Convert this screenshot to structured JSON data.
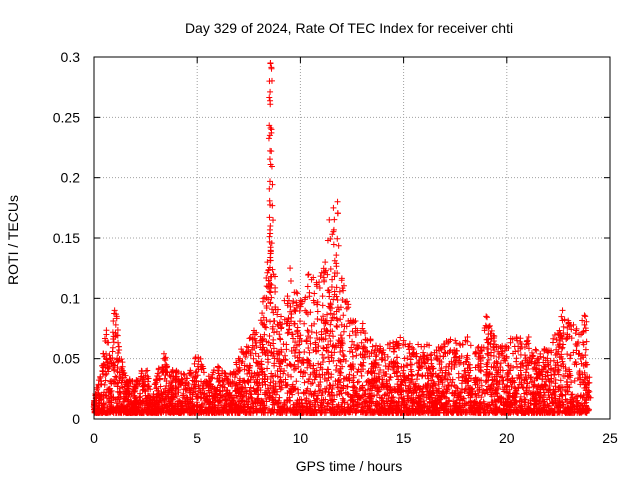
{
  "chart_data": {
    "type": "scatter",
    "title": "Day 329 of 2024, Rate Of TEC Index for receiver chti",
    "xlabel": "GPS time / hours",
    "ylabel": "ROTI / TECUs",
    "xlim": [
      0,
      25
    ],
    "ylim": [
      0,
      0.3
    ],
    "grid": true,
    "x_ticks": [
      0,
      5,
      10,
      15,
      20,
      25
    ],
    "x_tick_labels": [
      "0",
      "5",
      "10",
      "15",
      "20",
      "25"
    ],
    "y_ticks": [
      0,
      0.05,
      0.1,
      0.15,
      0.2,
      0.25,
      0.3
    ],
    "y_tick_labels": [
      "0",
      "0.05",
      "0.1",
      "0.15",
      "0.2",
      "0.25",
      "0.3"
    ],
    "marker": "+",
    "marker_color": "#ff0000",
    "series": [
      {
        "name": "ROTI",
        "note": "dense overplotted point cloud; representative peaks listed",
        "x": [
          0.0,
          0.1,
          0.3,
          0.6,
          0.8,
          1.0,
          1.1,
          1.2,
          1.4,
          1.6,
          2.0,
          2.3,
          2.6,
          3.0,
          3.4,
          3.5,
          3.7,
          4.0,
          4.5,
          4.9,
          5.2,
          5.5,
          6.0,
          6.5,
          7.0,
          7.4,
          7.8,
          8.2,
          8.4,
          8.5,
          8.55,
          8.6,
          8.7,
          9.0,
          9.5,
          9.8,
          10.0,
          10.4,
          10.8,
          11.2,
          11.4,
          11.6,
          11.8,
          12.0,
          12.5,
          13.0,
          13.5,
          14.0,
          14.5,
          15.0,
          15.5,
          16.0,
          16.5,
          17.0,
          17.5,
          18.0,
          18.5,
          19.0,
          19.5,
          20.0,
          20.5,
          21.0,
          21.5,
          22.0,
          22.5,
          22.7,
          23.0,
          23.5,
          23.8,
          24.0
        ],
        "y": [
          0.012,
          0.02,
          0.035,
          0.07,
          0.05,
          0.09,
          0.085,
          0.06,
          0.04,
          0.03,
          0.025,
          0.04,
          0.035,
          0.03,
          0.05,
          0.045,
          0.035,
          0.04,
          0.03,
          0.05,
          0.045,
          0.03,
          0.04,
          0.03,
          0.05,
          0.06,
          0.07,
          0.1,
          0.13,
          0.28,
          0.295,
          0.24,
          0.12,
          0.08,
          0.125,
          0.105,
          0.095,
          0.12,
          0.11,
          0.13,
          0.165,
          0.175,
          0.18,
          0.115,
          0.08,
          0.075,
          0.06,
          0.055,
          0.06,
          0.065,
          0.055,
          0.06,
          0.055,
          0.06,
          0.065,
          0.065,
          0.055,
          0.085,
          0.06,
          0.06,
          0.065,
          0.065,
          0.05,
          0.055,
          0.07,
          0.09,
          0.08,
          0.07,
          0.085,
          0.03
        ]
      }
    ]
  }
}
